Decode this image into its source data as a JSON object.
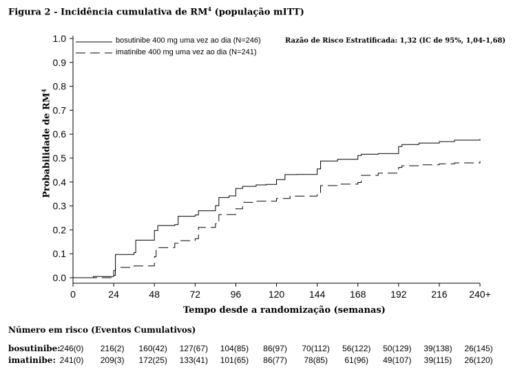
{
  "title_main": "Figura 2 - Incidência cumulativa de RM",
  "title_sup": "4",
  "title_tail": " (população mITT)",
  "stat_note": "Razão de Risco Estratificada: 1,32 (IC de 95%, 1,04-1,68)",
  "chart_data": {
    "type": "line",
    "title": "Figura 2 - Incidência cumulativa de RM4 (população mITT)",
    "xlabel": "Tempo desde a randomização (semanas)",
    "ylabel_main": "Probabilidade de RM",
    "ylabel_sup": "4",
    "xlim": [
      0,
      240
    ],
    "ylim": [
      0,
      1.0
    ],
    "x_ticks": [
      0,
      24,
      48,
      72,
      96,
      120,
      144,
      168,
      192,
      216,
      240
    ],
    "x_tick_labels": [
      "0",
      "24",
      "48",
      "72",
      "96",
      "120",
      "144",
      "168",
      "192",
      "216",
      "240+"
    ],
    "y_ticks": [
      0.0,
      0.1,
      0.2,
      0.3,
      0.4,
      0.5,
      0.6,
      0.7,
      0.8,
      0.9,
      1.0
    ],
    "y_tick_labels": [
      "0.0",
      "0.1",
      "0.2",
      "0.3",
      "0.4",
      "0.5",
      "0.6",
      "0.7",
      "0.8",
      "0.9",
      "1.0"
    ],
    "grid": false,
    "legend_position": "top-left",
    "series": [
      {
        "name": "bosutinibe 400 mg uma vez ao dia (N=246)",
        "style": "solid",
        "color": "#000000",
        "x": [
          0,
          12,
          24,
          25,
          36,
          37,
          48,
          50,
          60,
          62,
          72,
          74,
          84,
          86,
          92,
          96,
          100,
          108,
          114,
          120,
          125,
          132,
          144,
          146,
          156,
          168,
          170,
          180,
          192,
          194,
          204,
          216,
          225,
          240
        ],
        "y": [
          0.0,
          0.005,
          0.03,
          0.097,
          0.105,
          0.157,
          0.197,
          0.218,
          0.222,
          0.257,
          0.262,
          0.28,
          0.301,
          0.335,
          0.342,
          0.373,
          0.382,
          0.388,
          0.39,
          0.41,
          0.431,
          0.432,
          0.455,
          0.488,
          0.495,
          0.511,
          0.516,
          0.519,
          0.548,
          0.557,
          0.563,
          0.569,
          0.575,
          0.58
        ]
      },
      {
        "name": "imatinibe 400 mg uma vez ao dia (N=241)",
        "style": "dashed",
        "color": "#000000",
        "x": [
          0,
          12,
          24,
          25,
          36,
          48,
          49,
          60,
          62,
          72,
          74,
          84,
          86,
          96,
          100,
          108,
          120,
          128,
          144,
          146,
          156,
          168,
          170,
          180,
          192,
          194,
          204,
          216,
          225,
          240
        ],
        "y": [
          0.0,
          0.0,
          0.01,
          0.043,
          0.049,
          0.088,
          0.126,
          0.144,
          0.155,
          0.163,
          0.21,
          0.226,
          0.264,
          0.288,
          0.315,
          0.32,
          0.331,
          0.341,
          0.355,
          0.385,
          0.391,
          0.398,
          0.428,
          0.437,
          0.461,
          0.468,
          0.472,
          0.476,
          0.48,
          0.487
        ]
      }
    ]
  },
  "risk_table": {
    "title": "Número em risco (Eventos Cumulativos)",
    "rows": [
      {
        "label": "bosutinibe:",
        "cells": [
          "246(0)",
          "216(2)",
          "160(42)",
          "127(67)",
          "104(85)",
          "86(97)",
          "70(112)",
          "56(122)",
          "50(129)",
          "39(138)",
          "26(145)"
        ]
      },
      {
        "label": "imatinibe:",
        "cells": [
          "241(0)",
          "209(3)",
          "172(25)",
          "133(41)",
          "101(65)",
          "86(77)",
          "78(85)",
          "61(96)",
          "49(107)",
          "39(115)",
          "26(120)"
        ]
      }
    ]
  }
}
